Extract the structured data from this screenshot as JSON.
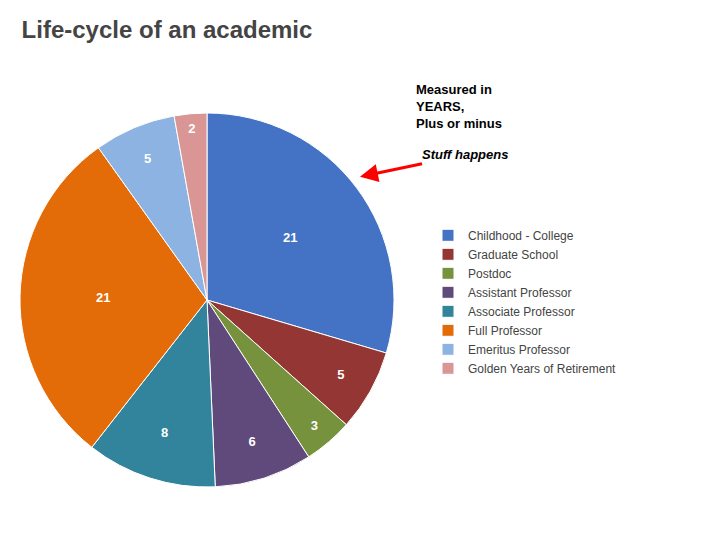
{
  "chart_data": {
    "type": "pie",
    "title": "Life-cycle of an academic",
    "subtitle": "Measured in\nYEARS,\nPlus or minus",
    "annotations": [
      "Stuff happens"
    ],
    "categories": [
      "Childhood - College",
      "Graduate School",
      "Postdoc",
      "Assistant Professor",
      "Associate Professor",
      "Full Professor",
      "Emeritus Professor",
      "Golden Years of Retirement"
    ],
    "values": [
      21,
      5,
      3,
      6,
      8,
      21,
      5,
      2
    ],
    "colors": [
      "#4472c4",
      "#943634",
      "#76923c",
      "#604a7b",
      "#31849b",
      "#e36c09",
      "#8db3e2",
      "#d99694"
    ],
    "data_labels": true,
    "legend": "right"
  }
}
